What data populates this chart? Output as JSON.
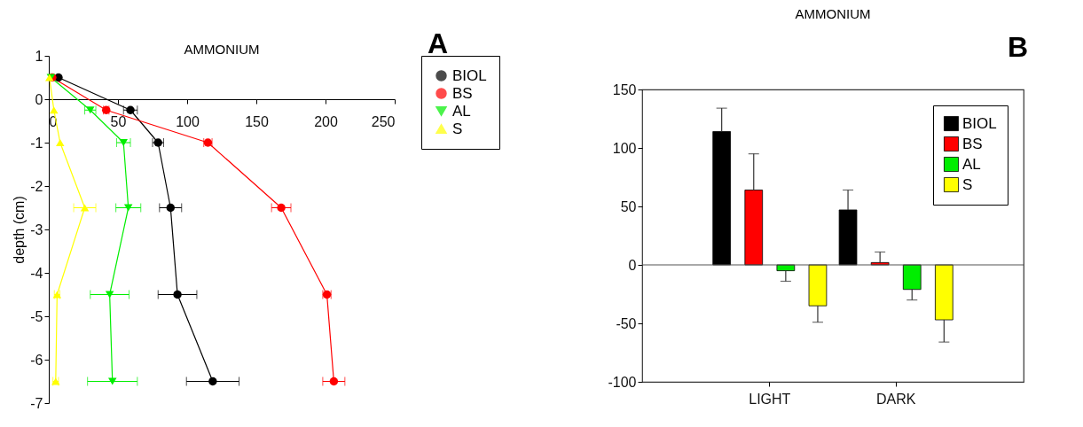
{
  "chart_data": [
    {
      "type": "line",
      "title": "AMMONIUM",
      "ylabel": "depth (cm)",
      "annotations": [
        "A"
      ],
      "xlim": [
        0,
        250
      ],
      "xticks": [
        0,
        50,
        100,
        150,
        200,
        250
      ],
      "ylim": [
        -7,
        1
      ],
      "yticks": [
        -7,
        -6,
        -5,
        -4,
        -3,
        -2,
        -1,
        0,
        1
      ],
      "legend": "right",
      "series": [
        {
          "name": "BIOL",
          "color": "#000000",
          "marker": "circle",
          "x": [
            7,
            59,
            79,
            88,
            93,
            118.5
          ],
          "values": [
            0.5,
            -0.25,
            -1,
            -2.5,
            -4.5,
            -6.5
          ],
          "xerrors": [
            null,
            5,
            4,
            8,
            14,
            19
          ]
        },
        {
          "name": "BS",
          "color": "#ff0000",
          "marker": "circle",
          "x": [
            2.5,
            41.5,
            115,
            168,
            201,
            206
          ],
          "values": [
            0.5,
            -0.25,
            -1,
            -2.5,
            -4.5,
            -6.5
          ],
          "xerrors": [
            null,
            2,
            3,
            7,
            3,
            8
          ]
        },
        {
          "name": "AL",
          "color": "#00ee00",
          "marker": "triangle-down",
          "x": [
            1.5,
            30,
            54,
            57.5,
            44,
            46
          ],
          "values": [
            0.5,
            -0.25,
            -1,
            -2.5,
            -4.5,
            -6.5
          ],
          "xerrors": [
            null,
            4,
            5,
            9,
            14,
            18
          ]
        },
        {
          "name": "S",
          "color": "#ffff00",
          "marker": "triangle",
          "x": [
            0.5,
            3.7,
            8.2,
            26,
            6,
            5
          ],
          "values": [
            0.5,
            -0.25,
            -1,
            -2.5,
            -4.5,
            -6.5
          ],
          "xerrors": [
            null,
            null,
            null,
            8,
            2,
            2
          ]
        }
      ]
    },
    {
      "type": "bar",
      "title": "AMMONIUM",
      "annotations": [
        "B"
      ],
      "categories": [
        "LIGHT",
        "DARK"
      ],
      "ylim": [
        -100,
        150
      ],
      "yticks": [
        -100,
        -50,
        0,
        50,
        100,
        150
      ],
      "legend": "top right",
      "ref_lines": [
        {
          "axis": "y",
          "value": 0
        }
      ],
      "series": [
        {
          "name": "BIOL",
          "color": "#000000",
          "values": [
            114,
            47
          ],
          "errors": [
            [
              114,
              134
            ],
            [
              47,
              64
            ]
          ]
        },
        {
          "name": "BS",
          "color": "#ff0000",
          "values": [
            64,
            2
          ],
          "errors": [
            [
              64,
              95
            ],
            [
              2,
              11
            ]
          ]
        },
        {
          "name": "AL",
          "color": "#00ee00",
          "values": [
            -5,
            -21
          ],
          "errors": [
            [
              -14,
              -5
            ],
            [
              -30,
              -21
            ]
          ]
        },
        {
          "name": "S",
          "color": "#ffff00",
          "values": [
            -35,
            -47
          ],
          "errors": [
            [
              -49,
              -35
            ],
            [
              -66,
              -47
            ]
          ]
        }
      ]
    }
  ]
}
